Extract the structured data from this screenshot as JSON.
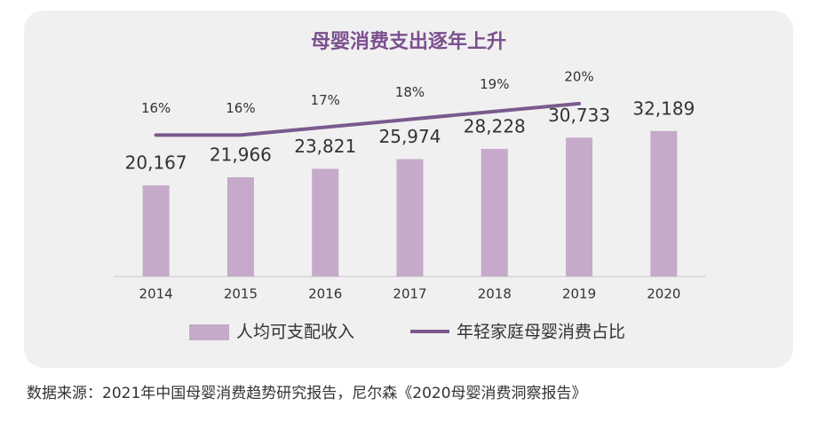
{
  "chart_data": {
    "type": "bar_line",
    "title": "母婴消费支出逐年上升",
    "categories": [
      "2014",
      "2015",
      "2016",
      "2017",
      "2018",
      "2019",
      "2020"
    ],
    "series": [
      {
        "name": "人均可支配收入",
        "type": "bar",
        "color": "#c5aac9",
        "values": [
          20167,
          21966,
          23821,
          25974,
          28228,
          30733,
          32189
        ],
        "value_labels": [
          "20,167",
          "21,966",
          "23,821",
          "25,974",
          "28,228",
          "30,733",
          "32,189"
        ]
      },
      {
        "name": "年轻家庭母婴消费占比",
        "type": "line",
        "axis": "y2",
        "color": "#7a5a8e",
        "values": [
          16,
          16,
          17,
          18,
          19,
          20,
          null
        ],
        "value_labels": [
          "16%",
          "16%",
          "17%",
          "18%",
          "19%",
          "20%",
          null
        ]
      }
    ],
    "ylim": [
      0,
      40000
    ],
    "y2lim": [
      -2,
      21
    ],
    "source": "数据来源：2021年中国母婴消费趋势研究报告，尼尔森《2020母婴消费洞察报告》"
  }
}
